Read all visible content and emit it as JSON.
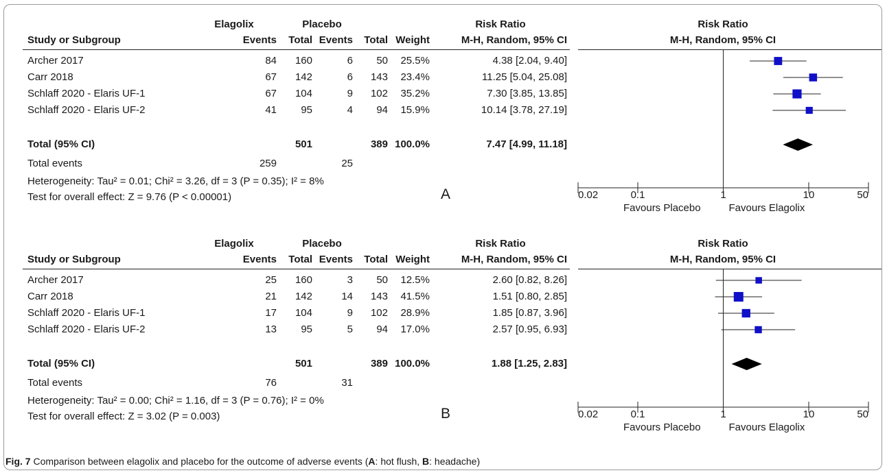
{
  "caption": {
    "label": "Fig. 7",
    "parts": [
      {
        "text": "  Comparison between elagolix and placebo for the outcome of adverse events (",
        "bold": false
      },
      {
        "text": "A",
        "bold": true
      },
      {
        "text": ": hot flush, ",
        "bold": false
      },
      {
        "text": "B",
        "bold": true
      },
      {
        "text": ": headache)",
        "bold": false
      }
    ]
  },
  "chart_data": [
    {
      "type": "forest",
      "panel_letter": "A",
      "headers": {
        "study": "Study or Subgroup",
        "group1": "Elagolix",
        "group2": "Placebo",
        "events": "Events",
        "total": "Total",
        "weight": "Weight",
        "rr_title": "Risk Ratio",
        "rr_method": "M-H, Random, 95% CI",
        "plot_title": "Risk Ratio",
        "plot_method": "M-H, Random, 95% CI"
      },
      "studies": [
        {
          "name": "Archer 2017",
          "e1": "84",
          "t1": "160",
          "e2": "6",
          "t2": "50",
          "weight": "25.5%",
          "ci_text": "4.38 [2.04, 9.40]",
          "rr": 4.38,
          "lo": 2.04,
          "hi": 9.4,
          "w": 25.5
        },
        {
          "name": "Carr 2018",
          "e1": "67",
          "t1": "142",
          "e2": "6",
          "t2": "143",
          "weight": "23.4%",
          "ci_text": "11.25 [5.04, 25.08]",
          "rr": 11.25,
          "lo": 5.04,
          "hi": 25.08,
          "w": 23.4
        },
        {
          "name": "Schlaff 2020 - Elaris UF-1",
          "e1": "67",
          "t1": "104",
          "e2": "9",
          "t2": "102",
          "weight": "35.2%",
          "ci_text": "7.30 [3.85, 13.85]",
          "rr": 7.3,
          "lo": 3.85,
          "hi": 13.85,
          "w": 35.2
        },
        {
          "name": "Schlaff 2020 - Elaris UF-2",
          "e1": "41",
          "t1": "95",
          "e2": "4",
          "t2": "94",
          "weight": "15.9%",
          "ci_text": "10.14 [3.78, 27.19]",
          "rr": 10.14,
          "lo": 3.78,
          "hi": 27.19,
          "w": 15.9
        }
      ],
      "total": {
        "label": "Total (95% CI)",
        "t1": "501",
        "t2": "389",
        "weight": "100.0%",
        "ci_text": "7.47 [4.99, 11.18]",
        "rr": 7.47,
        "lo": 4.99,
        "hi": 11.18
      },
      "total_events": {
        "label": "Total events",
        "e1": "259",
        "e2": "25"
      },
      "heterogeneity": "Heterogeneity: Tau² = 0.01; Chi² = 3.26, df = 3 (P = 0.35); I² = 8%",
      "overall_effect": "Test for overall effect: Z = 9.76 (P < 0.00001)",
      "axis": {
        "scale": "log",
        "ticks": [
          0.02,
          0.1,
          1,
          10,
          50
        ],
        "tick_labels": [
          "0.02",
          "0.1",
          "1",
          "10",
          "50"
        ],
        "left_label": "Favours Placebo",
        "right_label": "Favours Elagolix"
      }
    },
    {
      "type": "forest",
      "panel_letter": "B",
      "headers": {
        "study": "Study or Subgroup",
        "group1": "Elagolix",
        "group2": "Placebo",
        "events": "Events",
        "total": "Total",
        "weight": "Weight",
        "rr_title": "Risk Ratio",
        "rr_method": "M-H, Random, 95% CI",
        "plot_title": "Risk Ratio",
        "plot_method": "M-H, Random, 95% CI"
      },
      "studies": [
        {
          "name": "Archer 2017",
          "e1": "25",
          "t1": "160",
          "e2": "3",
          "t2": "50",
          "weight": "12.5%",
          "ci_text": "2.60 [0.82, 8.26]",
          "rr": 2.6,
          "lo": 0.82,
          "hi": 8.26,
          "w": 12.5
        },
        {
          "name": "Carr 2018",
          "e1": "21",
          "t1": "142",
          "e2": "14",
          "t2": "143",
          "weight": "41.5%",
          "ci_text": "1.51 [0.80, 2.85]",
          "rr": 1.51,
          "lo": 0.8,
          "hi": 2.85,
          "w": 41.5
        },
        {
          "name": "Schlaff 2020 - Elaris UF-1",
          "e1": "17",
          "t1": "104",
          "e2": "9",
          "t2": "102",
          "weight": "28.9%",
          "ci_text": "1.85 [0.87, 3.96]",
          "rr": 1.85,
          "lo": 0.87,
          "hi": 3.96,
          "w": 28.9
        },
        {
          "name": "Schlaff 2020 - Elaris UF-2",
          "e1": "13",
          "t1": "95",
          "e2": "5",
          "t2": "94",
          "weight": "17.0%",
          "ci_text": "2.57 [0.95, 6.93]",
          "rr": 2.57,
          "lo": 0.95,
          "hi": 6.93,
          "w": 17.0
        }
      ],
      "total": {
        "label": "Total (95% CI)",
        "t1": "501",
        "t2": "389",
        "weight": "100.0%",
        "ci_text": "1.88 [1.25, 2.83]",
        "rr": 1.88,
        "lo": 1.25,
        "hi": 2.83
      },
      "total_events": {
        "label": "Total events",
        "e1": "76",
        "e2": "31"
      },
      "heterogeneity": "Heterogeneity: Tau² = 0.00; Chi² = 1.16, df = 3 (P = 0.76); I² = 0%",
      "overall_effect": "Test for overall effect: Z = 3.02 (P = 0.003)",
      "axis": {
        "scale": "log",
        "ticks": [
          0.02,
          0.1,
          1,
          10,
          50
        ],
        "tick_labels": [
          "0.02",
          "0.1",
          "1",
          "10",
          "50"
        ],
        "left_label": "Favours Placebo",
        "right_label": "Favours Elagolix"
      }
    }
  ]
}
